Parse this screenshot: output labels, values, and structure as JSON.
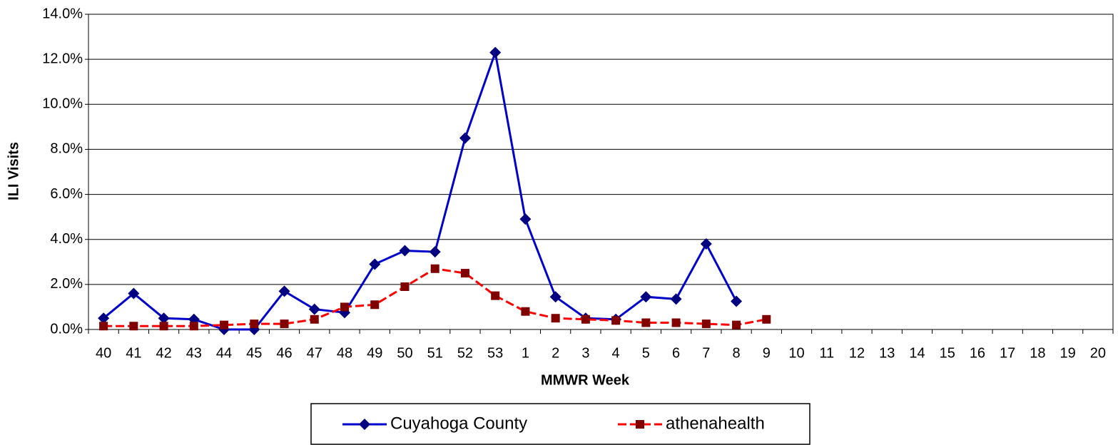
{
  "chart_data": {
    "type": "line",
    "x_label": "MMWR Week",
    "y_label": "ILI Visits",
    "categories": [
      "40",
      "41",
      "42",
      "43",
      "44",
      "45",
      "46",
      "47",
      "48",
      "49",
      "50",
      "51",
      "52",
      "53",
      "1",
      "2",
      "3",
      "4",
      "5",
      "6",
      "7",
      "8",
      "9",
      "10",
      "11",
      "12",
      "13",
      "14",
      "15",
      "16",
      "17",
      "18",
      "19",
      "20"
    ],
    "series": [
      {
        "name": "Cuyahoga County",
        "color": "#0000cc",
        "marker": "diamond",
        "marker_color": "#000080",
        "line_style": "solid",
        "values": [
          0.5,
          1.6,
          0.5,
          0.45,
          0.0,
          0.0,
          1.7,
          0.9,
          0.75,
          2.9,
          3.5,
          3.45,
          8.5,
          12.3,
          4.9,
          1.45,
          0.5,
          0.45,
          1.45,
          1.35,
          3.8,
          1.25,
          null,
          null,
          null,
          null,
          null,
          null,
          null,
          null,
          null,
          null,
          null,
          null
        ]
      },
      {
        "name": "athenahealth",
        "color": "#ff0000",
        "marker": "square",
        "marker_color": "#800000",
        "line_style": "dashed",
        "values": [
          0.15,
          0.15,
          0.15,
          0.15,
          0.2,
          0.25,
          0.25,
          0.45,
          1.0,
          1.1,
          1.9,
          2.7,
          2.5,
          1.5,
          0.8,
          0.5,
          0.45,
          0.4,
          0.3,
          0.3,
          0.25,
          0.2,
          0.45,
          null,
          null,
          null,
          null,
          null,
          null,
          null,
          null,
          null,
          null,
          null
        ]
      }
    ],
    "ylim": [
      0,
      14
    ],
    "yticks": [
      {
        "value": 0,
        "label": "0.0%"
      },
      {
        "value": 2,
        "label": "2.0%"
      },
      {
        "value": 4,
        "label": "4.0%"
      },
      {
        "value": 6,
        "label": "6.0%"
      },
      {
        "value": 8,
        "label": "8.0%"
      },
      {
        "value": 10,
        "label": "10.0%"
      },
      {
        "value": 12,
        "label": "12.0%"
      },
      {
        "value": 14,
        "label": "14.0%"
      }
    ],
    "grid": true,
    "legend": "bottom"
  }
}
